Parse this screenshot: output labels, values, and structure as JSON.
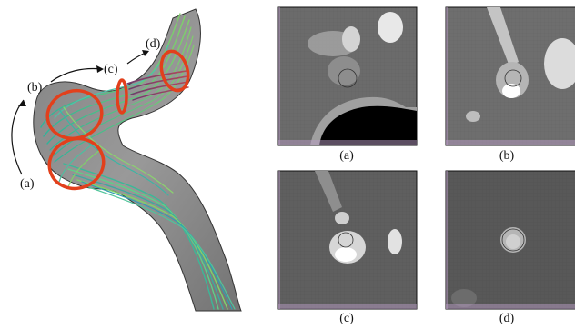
{
  "render": {
    "labels": [
      "(a)",
      "(b)",
      "(c)",
      "(d)"
    ],
    "arrow_note": ""
  },
  "panels": [
    {
      "caption": "(a)"
    },
    {
      "caption": "(b)"
    },
    {
      "caption": "(c)"
    },
    {
      "caption": "(d)"
    }
  ]
}
